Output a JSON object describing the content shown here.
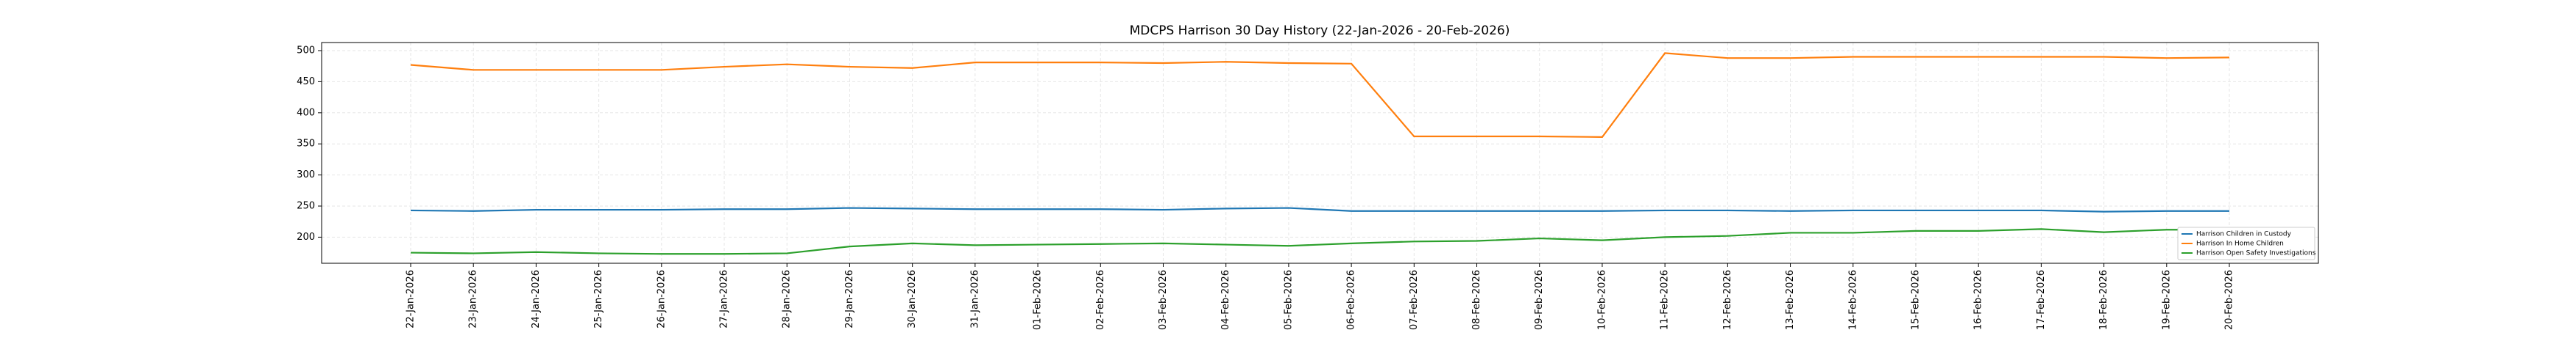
{
  "chart_data": {
    "type": "line",
    "title": "MDCPS Harrison 30 Day History (22-Jan-2026 - 20-Feb-2026)",
    "categories": [
      "22-Jan-2026",
      "23-Jan-2026",
      "24-Jan-2026",
      "25-Jan-2026",
      "26-Jan-2026",
      "27-Jan-2026",
      "28-Jan-2026",
      "29-Jan-2026",
      "30-Jan-2026",
      "31-Jan-2026",
      "01-Feb-2026",
      "02-Feb-2026",
      "03-Feb-2026",
      "04-Feb-2026",
      "05-Feb-2026",
      "06-Feb-2026",
      "07-Feb-2026",
      "08-Feb-2026",
      "09-Feb-2026",
      "10-Feb-2026",
      "11-Feb-2026",
      "12-Feb-2026",
      "13-Feb-2026",
      "14-Feb-2026",
      "15-Feb-2026",
      "16-Feb-2026",
      "17-Feb-2026",
      "18-Feb-2026",
      "19-Feb-2026",
      "20-Feb-2026"
    ],
    "series": [
      {
        "name": "Harrison Children in Custody",
        "color": "#1f77b4",
        "values": [
          243,
          242,
          244,
          244,
          244,
          245,
          245,
          247,
          246,
          245,
          245,
          245,
          244,
          246,
          247,
          242,
          242,
          242,
          242,
          242,
          243,
          243,
          242,
          243,
          243,
          243,
          243,
          241,
          242,
          242
        ]
      },
      {
        "name": "Harrison In Home Children",
        "color": "#ff7f0e",
        "values": [
          477,
          469,
          469,
          469,
          469,
          474,
          478,
          474,
          472,
          481,
          481,
          481,
          480,
          482,
          480,
          479,
          362,
          362,
          362,
          361,
          496,
          488,
          488,
          490,
          490,
          490,
          490,
          490,
          488,
          489
        ]
      },
      {
        "name": "Harrison Open Safety Investigations",
        "color": "#2ca02c",
        "values": [
          175,
          174,
          176,
          174,
          173,
          173,
          174,
          185,
          190,
          187,
          188,
          189,
          190,
          188,
          186,
          190,
          193,
          194,
          198,
          195,
          200,
          202,
          207,
          207,
          210,
          210,
          213,
          208,
          212,
          212
        ]
      }
    ],
    "ylim": [
      158,
      513
    ],
    "yticks": [
      200,
      250,
      300,
      350,
      400,
      450,
      500
    ],
    "grid": true,
    "legend": "lower right"
  }
}
